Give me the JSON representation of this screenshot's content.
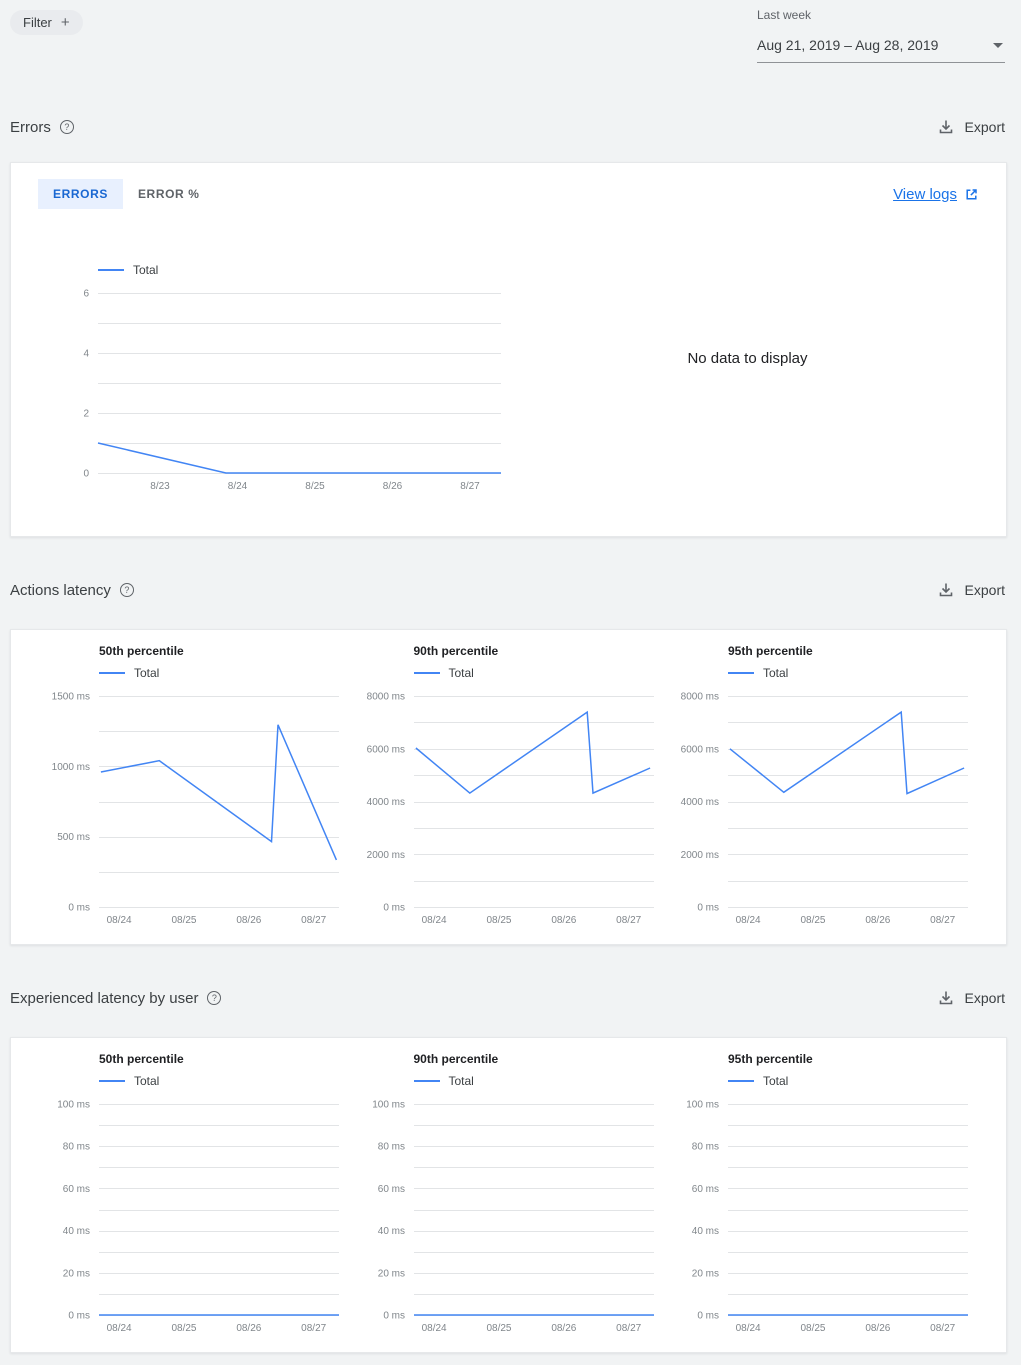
{
  "colors": {
    "accent": "#1a73e8",
    "line": "#4285f4",
    "grid": "#e2e4e6",
    "tab_active_bg": "#e8f0fe"
  },
  "icons": {
    "plus": "+",
    "help": "?"
  },
  "toolbar": {
    "filter_label": "Filter",
    "period_label": "Last week",
    "date_range": "Aug 21, 2019 – Aug 28, 2019"
  },
  "errors_section": {
    "title": "Errors",
    "export_label": "Export",
    "tab_errors": "ERRORS",
    "tab_error_pct": "ERROR %",
    "view_logs_label": "View logs",
    "no_data_text": "No data to display"
  },
  "actions_section": {
    "title": "Actions latency",
    "export_label": "Export"
  },
  "user_section": {
    "title": "Experienced latency by user",
    "export_label": "Export"
  },
  "chart_data": [
    {
      "id": "errors",
      "type": "line",
      "title": "",
      "ylabel": "",
      "y_unit": "",
      "ylim": [
        0,
        6
      ],
      "y_ticks": [
        0,
        2,
        4,
        6
      ],
      "y_minor_step": 1,
      "xlim": [
        22.2,
        27.4
      ],
      "x_ticks": [
        23,
        24,
        25,
        26,
        27
      ],
      "x_tick_labels": [
        "8/23",
        "8/24",
        "8/25",
        "8/26",
        "8/27"
      ],
      "legend_position": "top-left",
      "grid": true,
      "series": [
        {
          "name": "Total",
          "points": [
            [
              22.2,
              1
            ],
            [
              23.85,
              0
            ],
            [
              27.4,
              0
            ]
          ]
        }
      ]
    },
    {
      "id": "actions-p50",
      "type": "line",
      "title": "50th percentile",
      "y_unit": " ms",
      "ylim": [
        0,
        1500
      ],
      "y_ticks": [
        0,
        500,
        1000,
        1500
      ],
      "y_minor_step": 250,
      "xlim": [
        23.69,
        27.39
      ],
      "x_ticks": [
        24,
        25,
        26,
        27
      ],
      "x_tick_labels": [
        "08/24",
        "08/25",
        "08/26",
        "08/27"
      ],
      "grid": true,
      "series": [
        {
          "name": "Total",
          "points": [
            [
              23.72,
              960
            ],
            [
              24.62,
              1040
            ],
            [
              26.35,
              465
            ],
            [
              26.45,
              1295
            ],
            [
              27.35,
              335
            ]
          ]
        }
      ]
    },
    {
      "id": "actions-p90",
      "type": "line",
      "title": "90th percentile",
      "y_unit": " ms",
      "ylim": [
        0,
        8000
      ],
      "y_ticks": [
        0,
        2000,
        4000,
        6000,
        8000
      ],
      "y_minor_step": 1000,
      "xlim": [
        23.69,
        27.39
      ],
      "x_ticks": [
        24,
        25,
        26,
        27
      ],
      "x_tick_labels": [
        "08/24",
        "08/25",
        "08/26",
        "08/27"
      ],
      "grid": true,
      "series": [
        {
          "name": "Total",
          "points": [
            [
              23.72,
              6030
            ],
            [
              24.55,
              4320
            ],
            [
              26.36,
              7390
            ],
            [
              26.45,
              4320
            ],
            [
              27.33,
              5270
            ]
          ]
        }
      ]
    },
    {
      "id": "actions-p95",
      "type": "line",
      "title": "95th percentile",
      "y_unit": " ms",
      "ylim": [
        0,
        8000
      ],
      "y_ticks": [
        0,
        2000,
        4000,
        6000,
        8000
      ],
      "y_minor_step": 1000,
      "xlim": [
        23.69,
        27.39
      ],
      "x_ticks": [
        24,
        25,
        26,
        27
      ],
      "x_tick_labels": [
        "08/24",
        "08/25",
        "08/26",
        "08/27"
      ],
      "grid": true,
      "series": [
        {
          "name": "Total",
          "points": [
            [
              23.72,
              6000
            ],
            [
              24.55,
              4350
            ],
            [
              26.36,
              7390
            ],
            [
              26.45,
              4300
            ],
            [
              27.33,
              5270
            ]
          ]
        }
      ]
    },
    {
      "id": "user-p50",
      "type": "line",
      "title": "50th percentile",
      "y_unit": " ms",
      "ylim": [
        0,
        100
      ],
      "y_ticks": [
        0,
        20,
        40,
        60,
        80,
        100
      ],
      "y_minor_step": 10,
      "xlim": [
        23.69,
        27.39
      ],
      "x_ticks": [
        24,
        25,
        26,
        27
      ],
      "x_tick_labels": [
        "08/24",
        "08/25",
        "08/26",
        "08/27"
      ],
      "grid": true,
      "series": [
        {
          "name": "Total",
          "points": [
            [
              23.69,
              0
            ],
            [
              27.39,
              0
            ]
          ]
        }
      ]
    },
    {
      "id": "user-p90",
      "type": "line",
      "title": "90th percentile",
      "y_unit": " ms",
      "ylim": [
        0,
        100
      ],
      "y_ticks": [
        0,
        20,
        40,
        60,
        80,
        100
      ],
      "y_minor_step": 10,
      "xlim": [
        23.69,
        27.39
      ],
      "x_ticks": [
        24,
        25,
        26,
        27
      ],
      "x_tick_labels": [
        "08/24",
        "08/25",
        "08/26",
        "08/27"
      ],
      "grid": true,
      "series": [
        {
          "name": "Total",
          "points": [
            [
              23.69,
              0
            ],
            [
              27.39,
              0
            ]
          ]
        }
      ]
    },
    {
      "id": "user-p95",
      "type": "line",
      "title": "95th percentile",
      "y_unit": " ms",
      "ylim": [
        0,
        100
      ],
      "y_ticks": [
        0,
        20,
        40,
        60,
        80,
        100
      ],
      "y_minor_step": 10,
      "xlim": [
        23.69,
        27.39
      ],
      "x_ticks": [
        24,
        25,
        26,
        27
      ],
      "x_tick_labels": [
        "08/24",
        "08/25",
        "08/26",
        "08/27"
      ],
      "grid": true,
      "series": [
        {
          "name": "Total",
          "points": [
            [
              23.69,
              0
            ],
            [
              27.39,
              0
            ]
          ]
        }
      ]
    }
  ]
}
